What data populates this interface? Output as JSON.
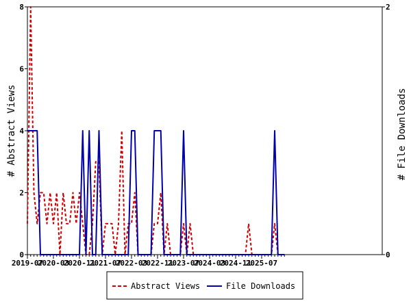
{
  "chart_data": {
    "type": "line",
    "title": "",
    "y_left_label": "# Abstract Views",
    "y_right_label": "# File Downloads",
    "y_left_range": [
      0,
      8
    ],
    "y_right_range": [
      0,
      2
    ],
    "y_left_ticks": [
      "0",
      "2",
      "4",
      "6",
      "8"
    ],
    "y_right_ticks": [
      "0",
      "2"
    ],
    "x_tick_labels": [
      "2019-07",
      "2020-03",
      "2020-11",
      "2021-07",
      "2022-03",
      "2022-11",
      "2023-07",
      "2024-03",
      "2024-11",
      "2025-07"
    ],
    "x_start_month": "2019-07",
    "legend_position": "bottom",
    "series": [
      {
        "name": "Abstract Views",
        "color": "#cc0000",
        "style": "dashed",
        "axis": "left",
        "values": [
          1,
          8,
          2,
          1,
          2,
          2,
          1,
          2,
          1,
          2,
          0,
          2,
          1,
          1,
          2,
          1,
          2,
          1,
          0,
          0,
          1,
          3,
          3,
          0,
          1,
          1,
          1,
          0,
          1,
          4,
          0,
          1,
          1,
          2,
          0,
          0,
          0,
          0,
          0,
          1,
          1,
          2,
          0,
          1,
          0,
          0,
          0,
          0,
          1,
          0,
          1,
          0,
          0,
          0,
          0,
          0,
          0,
          0,
          0,
          0,
          0,
          0,
          0,
          0,
          0,
          0,
          0,
          0,
          1,
          0,
          0,
          0,
          0,
          0,
          0,
          0,
          1,
          0,
          0,
          0
        ]
      },
      {
        "name": "File Downloads",
        "color": "#0000aa",
        "style": "solid",
        "axis": "right",
        "values": [
          1,
          1,
          1,
          1,
          0,
          0,
          0,
          0,
          0,
          0,
          0,
          0,
          0,
          0,
          0,
          0,
          0,
          1,
          0,
          1,
          0,
          0,
          1,
          0,
          0,
          0,
          0,
          0,
          0,
          0,
          0,
          0,
          1,
          1,
          0,
          0,
          0,
          0,
          0,
          1,
          1,
          1,
          0,
          0,
          0,
          0,
          0,
          0,
          1,
          0,
          0,
          0,
          0,
          0,
          0,
          0,
          0,
          0,
          0,
          0,
          0,
          0,
          0,
          0,
          0,
          0,
          0,
          0,
          0,
          0,
          0,
          0,
          0,
          0,
          0,
          0,
          1,
          0,
          0,
          0
        ]
      }
    ]
  }
}
